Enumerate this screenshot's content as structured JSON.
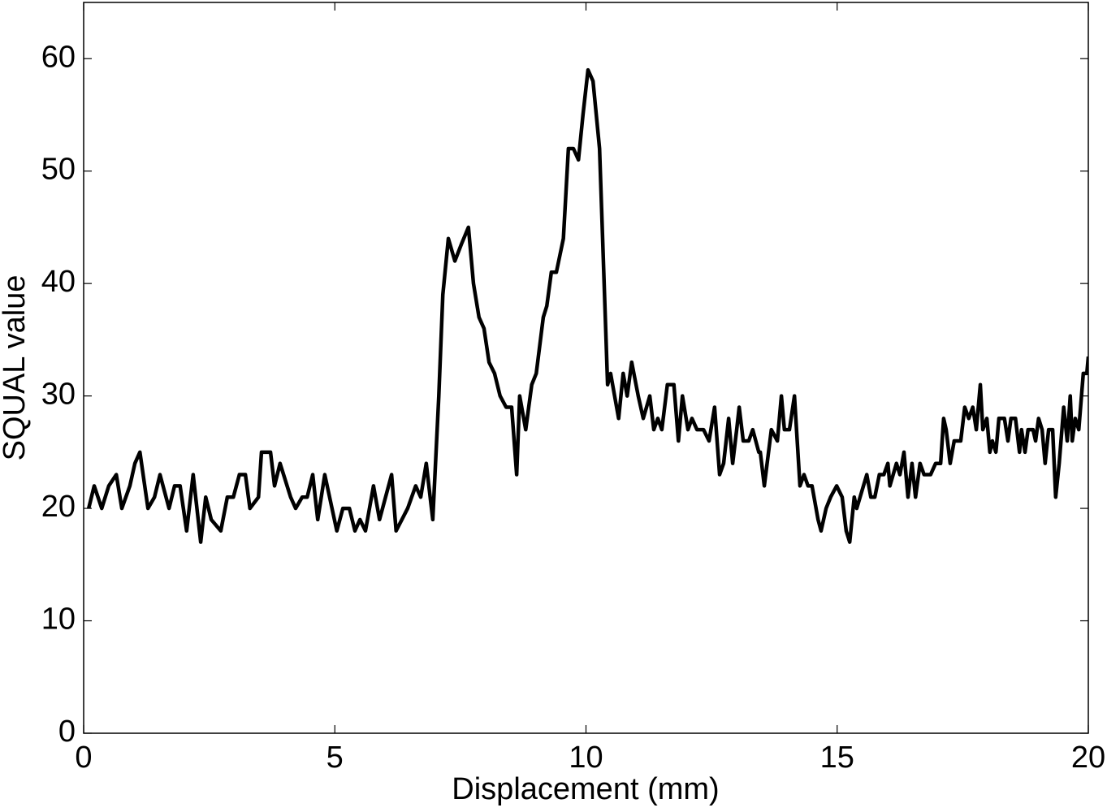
{
  "chart_data": {
    "type": "line",
    "xlabel": "Displacement (mm)",
    "ylabel": "SQUAL value",
    "xlim": [
      0,
      20
    ],
    "ylim": [
      0,
      65
    ],
    "xticks": [
      0,
      5,
      10,
      15,
      20
    ],
    "yticks": [
      0,
      10,
      20,
      30,
      40,
      50,
      60
    ],
    "color": "#000000",
    "x": [
      0.1,
      0.21,
      0.36,
      0.5,
      0.65,
      0.76,
      0.92,
      1.02,
      1.12,
      1.28,
      1.41,
      1.52,
      1.7,
      1.81,
      1.92,
      2.05,
      2.18,
      2.33,
      2.43,
      2.54,
      2.73,
      2.86,
      2.98,
      3.1,
      3.22,
      3.31,
      3.48,
      3.54,
      3.72,
      3.8,
      3.91,
      4.12,
      4.22,
      4.35,
      4.45,
      4.56,
      4.66,
      4.8,
      5.04,
      5.16,
      5.29,
      5.4,
      5.5,
      5.61,
      5.77,
      5.89,
      6.13,
      6.22,
      6.45,
      6.61,
      6.71,
      6.82,
      6.95,
      7.07,
      7.15,
      7.26,
      7.39,
      7.52,
      7.66,
      7.76,
      7.87,
      7.97,
      8.07,
      8.18,
      8.29,
      8.41,
      8.52,
      8.62,
      8.68,
      8.8,
      8.92,
      9.01,
      9.15,
      9.22,
      9.31,
      9.41,
      9.55,
      9.65,
      9.75,
      9.85,
      9.94,
      10.04,
      10.14,
      10.27,
      10.43,
      10.49,
      10.65,
      10.74,
      10.82,
      10.91,
      11.04,
      11.14,
      11.27,
      11.35,
      11.43,
      11.51,
      11.62,
      11.75,
      11.84,
      11.92,
      12.03,
      12.11,
      12.21,
      12.34,
      12.45,
      12.56,
      12.66,
      12.74,
      12.84,
      12.92,
      13.0,
      13.05,
      13.13,
      13.24,
      13.32,
      13.44,
      13.47,
      13.55,
      13.69,
      13.81,
      13.89,
      13.95,
      14.05,
      14.15,
      14.26,
      14.34,
      14.42,
      14.5,
      14.62,
      14.68,
      14.78,
      14.87,
      14.99,
      15.1,
      15.18,
      15.25,
      15.34,
      15.39,
      15.59,
      15.67,
      15.75,
      15.84,
      15.93,
      16.01,
      16.05,
      16.18,
      16.25,
      16.33,
      16.41,
      16.49,
      16.56,
      16.65,
      16.73,
      16.86,
      16.96,
      17.06,
      17.12,
      17.17,
      17.25,
      17.33,
      17.46,
      17.54,
      17.62,
      17.7,
      17.77,
      17.85,
      17.9,
      17.98,
      18.04,
      18.09,
      18.16,
      18.22,
      18.33,
      18.4,
      18.46,
      18.55,
      18.63,
      18.67,
      18.74,
      18.8,
      18.9,
      18.95,
      19.01,
      19.08,
      19.14,
      19.21,
      19.29,
      19.35,
      19.42,
      19.51,
      19.58,
      19.64,
      19.68,
      19.74,
      19.81,
      19.9,
      19.97,
      20.0
    ],
    "values": [
      20,
      22,
      20,
      22,
      23,
      20,
      22,
      24,
      25,
      20,
      21,
      23,
      20,
      22,
      22,
      18,
      23,
      17,
      21,
      19,
      18,
      21,
      21,
      23,
      23,
      20,
      21,
      25,
      25,
      22,
      24,
      21,
      20,
      21,
      21,
      23,
      19,
      23,
      18,
      20,
      20,
      18,
      19,
      18,
      22,
      19,
      23,
      18,
      20,
      22,
      21,
      24,
      19,
      30,
      39,
      44,
      42,
      43.5,
      45,
      40,
      37,
      36,
      33,
      32,
      30,
      29,
      29,
      23,
      30,
      27,
      31,
      32,
      37,
      38,
      41,
      41,
      44,
      52,
      52,
      51,
      55,
      59,
      58,
      52,
      31,
      32,
      28,
      32,
      30,
      33,
      30,
      28,
      30,
      27,
      28,
      27,
      31,
      31,
      26,
      30,
      27,
      28,
      27,
      27,
      26,
      29,
      23,
      24,
      28,
      24,
      27,
      29,
      26,
      26,
      27,
      25,
      25,
      22,
      27,
      26,
      30,
      27,
      27,
      30,
      22,
      23,
      22,
      22,
      19,
      18,
      20,
      21,
      22,
      21,
      18,
      17,
      21,
      20,
      23,
      21,
      21,
      23,
      23,
      24,
      22,
      24,
      23,
      25,
      21,
      24,
      21,
      24,
      23,
      23,
      24,
      24,
      28,
      27,
      24,
      26,
      26,
      29,
      28,
      29,
      27,
      31,
      27,
      28,
      25,
      26,
      25,
      28,
      28,
      26,
      28,
      28,
      25,
      27,
      25,
      27,
      27,
      26,
      28,
      27,
      24,
      27,
      27,
      21,
      24,
      29,
      26,
      30,
      26,
      28,
      27,
      32,
      32,
      33.5
    ]
  }
}
